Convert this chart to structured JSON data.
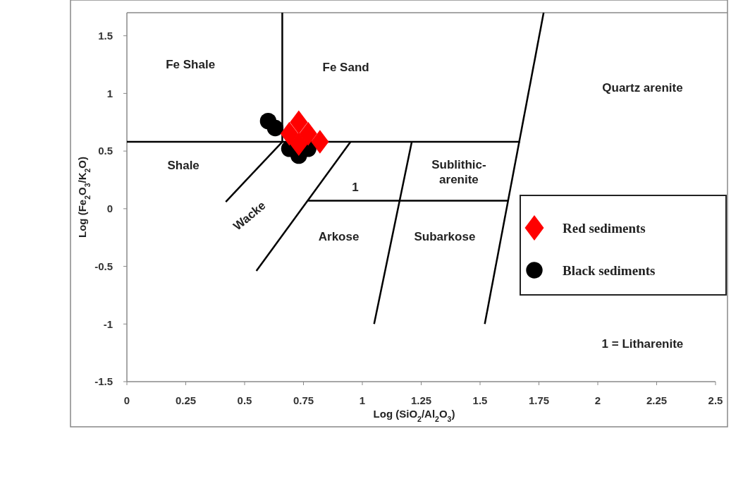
{
  "chart_data": {
    "type": "scatter",
    "xlabel": "Log (SiO$_{2}$/Al$_{2}$O$_{3}$)",
    "ylabel": "Log (Fe$_{2}$O$_{3}$/K$_{2}$O)",
    "xlim": [
      0,
      2.5
    ],
    "ylim": [
      -1.5,
      1.7
    ],
    "xticks": [
      0,
      0.25,
      0.5,
      0.75,
      1,
      1.25,
      1.5,
      1.75,
      2,
      2.25,
      2.5
    ],
    "yticks": [
      -1.5,
      -1,
      -0.5,
      0,
      0.5,
      1,
      1.5
    ],
    "legend": "right",
    "series": [
      {
        "type": "line",
        "color": "#000000",
        "marker": "none",
        "x": [
          0,
          1.67
        ],
        "values": [
          0.58,
          0.58
        ]
      },
      {
        "type": "line",
        "color": "#000000",
        "marker": "none",
        "x": [
          0.66,
          0.66
        ],
        "values": [
          0.58,
          1.7
        ]
      },
      {
        "type": "line",
        "color": "#000000",
        "marker": "none",
        "x": [
          1.52,
          1.77
        ],
        "values": [
          -1,
          1.7
        ]
      },
      {
        "type": "line",
        "color": "#000000",
        "marker": "none",
        "x": [
          0.42,
          0.66
        ],
        "values": [
          0.06,
          0.58
        ]
      },
      {
        "type": "line",
        "color": "#000000",
        "marker": "none",
        "x": [
          0.55,
          0.95
        ],
        "values": [
          -0.54,
          0.58
        ]
      },
      {
        "type": "line",
        "color": "#000000",
        "marker": "none",
        "x": [
          1.05,
          1.21
        ],
        "values": [
          -1,
          0.58
        ]
      },
      {
        "type": "line",
        "color": "#000000",
        "marker": "none",
        "x": [
          0.77,
          1.62
        ],
        "values": [
          0.07,
          0.07
        ]
      },
      {
        "name": "Black sediments",
        "color": "#000000",
        "marker": "circle",
        "x": [
          0.6,
          0.63,
          0.69,
          0.73,
          0.77
        ],
        "values": [
          0.76,
          0.7,
          0.52,
          0.46,
          0.52
        ]
      },
      {
        "name": "Red sediments",
        "color": "#ff0000",
        "marker": "diamond",
        "x": [
          0.69,
          0.73,
          0.77,
          0.73,
          0.82
        ],
        "values": [
          0.65,
          0.75,
          0.65,
          0.56,
          0.58
        ]
      }
    ],
    "annotations": [
      "Fe Shale",
      "Fe Sand",
      "Quartz arenite",
      "Shale",
      "Sublithic-\narenite",
      "1",
      "Wacke",
      "Arkose",
      "Subarkose",
      "1 = Litharenite"
    ]
  }
}
